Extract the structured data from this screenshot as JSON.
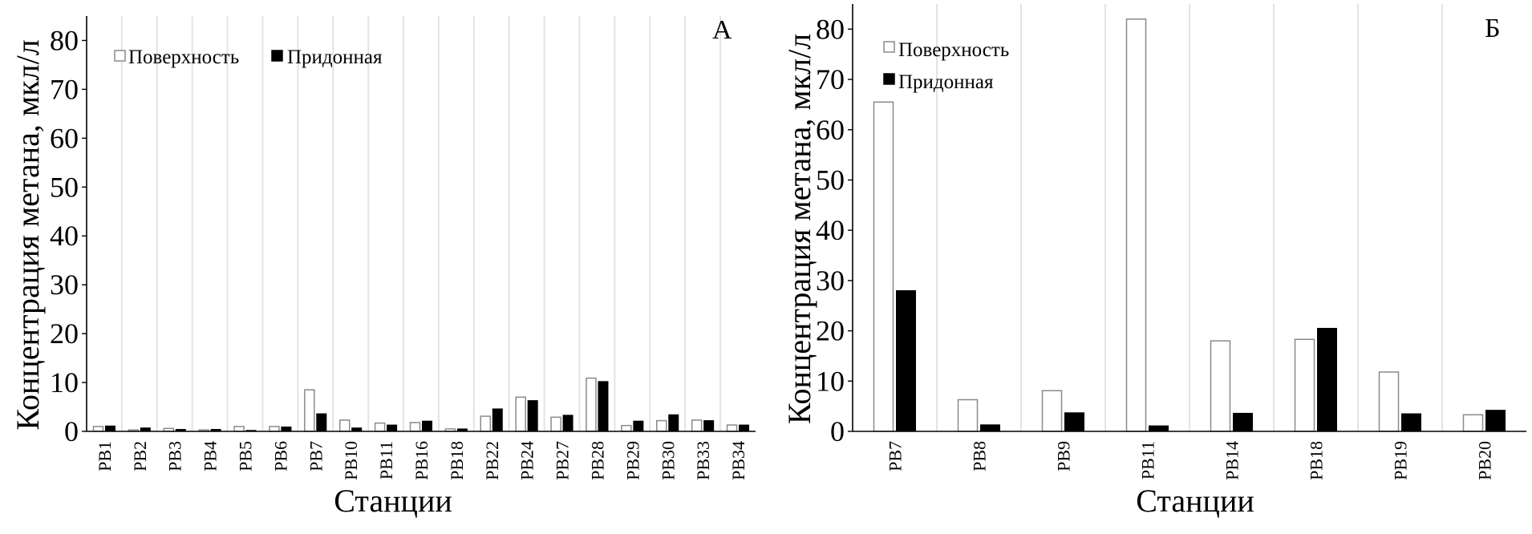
{
  "chart_data": [
    {
      "type": "bar",
      "panel_label": "А",
      "categories": [
        "PB1",
        "PB2",
        "PB3",
        "PB4",
        "PB5",
        "PB6",
        "PB7",
        "PB10",
        "PB11",
        "PB16",
        "PB18",
        "PB22",
        "PB24",
        "PB27",
        "PB28",
        "PB29",
        "PB30",
        "PB33",
        "PB34"
      ],
      "series": [
        {
          "name": "Поверхность",
          "values": [
            1.0,
            0.3,
            0.6,
            0.3,
            1.0,
            1.0,
            8.5,
            2.3,
            1.7,
            1.8,
            0.5,
            3.1,
            7.0,
            2.9,
            10.9,
            1.2,
            2.2,
            2.3,
            1.3
          ],
          "color": "#ffffff"
        },
        {
          "name": "Придонная",
          "values": [
            1.1,
            0.7,
            0.4,
            0.4,
            0.2,
            0.9,
            3.6,
            0.7,
            1.3,
            2.1,
            0.5,
            4.6,
            6.3,
            3.3,
            10.2,
            2.1,
            3.4,
            2.2,
            1.3
          ],
          "color": "#000000"
        }
      ],
      "xlabel": "Станции",
      "ylabel": "Концентрация метана, мкл/л",
      "ylim": [
        0,
        85
      ],
      "yticks": [
        0,
        10,
        20,
        30,
        40,
        50,
        60,
        70,
        80
      ],
      "grid": "vertical",
      "legend": "top-left, horizontal"
    },
    {
      "type": "bar",
      "panel_label": "Б",
      "categories": [
        "PB7",
        "PB8",
        "PB9",
        "PB11",
        "PB14",
        "PB18",
        "PB19",
        "PB20"
      ],
      "series": [
        {
          "name": "Поверхность",
          "values": [
            65.5,
            6.3,
            8.1,
            82.0,
            18.0,
            18.3,
            11.8,
            3.3
          ],
          "color": "#ffffff"
        },
        {
          "name": "Придонная",
          "values": [
            28.0,
            1.3,
            3.7,
            1.1,
            3.6,
            20.5,
            3.5,
            4.2
          ],
          "color": "#000000"
        }
      ],
      "xlabel": "Станции",
      "ylabel": "Концентрация метана, мкл/л",
      "ylim": [
        0,
        85
      ],
      "yticks": [
        0,
        10,
        20,
        30,
        40,
        50,
        60,
        70,
        80
      ],
      "grid": "vertical",
      "legend": "top-left, vertical"
    }
  ]
}
